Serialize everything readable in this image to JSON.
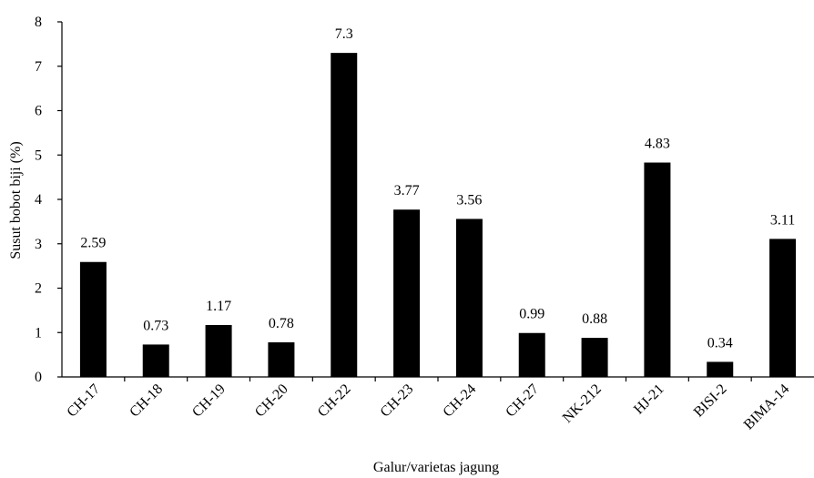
{
  "chart_data": {
    "type": "bar",
    "categories": [
      "CH-17",
      "CH-18",
      "CH-19",
      "CH-20",
      "CH-22",
      "CH-23",
      "CH-24",
      "CH-27",
      "NK-212",
      "HJ-21",
      "BISI-2",
      "BIMA-14"
    ],
    "values": [
      2.59,
      0.73,
      1.17,
      0.78,
      7.3,
      3.77,
      3.56,
      0.99,
      0.88,
      4.83,
      0.34,
      3.11
    ],
    "value_labels": [
      "2.59",
      "0.73",
      "1.17",
      "0.78",
      "7.3",
      "3.77",
      "3.56",
      "0.99",
      "0.88",
      "4.83",
      "0.34",
      "3.11"
    ],
    "title": "",
    "xlabel": "Galur/varietas jagung",
    "ylabel": "Susut bobot biji (%)",
    "ylim": [
      0,
      8
    ],
    "yticks": [
      0,
      1,
      2,
      3,
      4,
      5,
      6,
      7,
      8
    ],
    "grid": false,
    "bar_color": "#000000"
  }
}
